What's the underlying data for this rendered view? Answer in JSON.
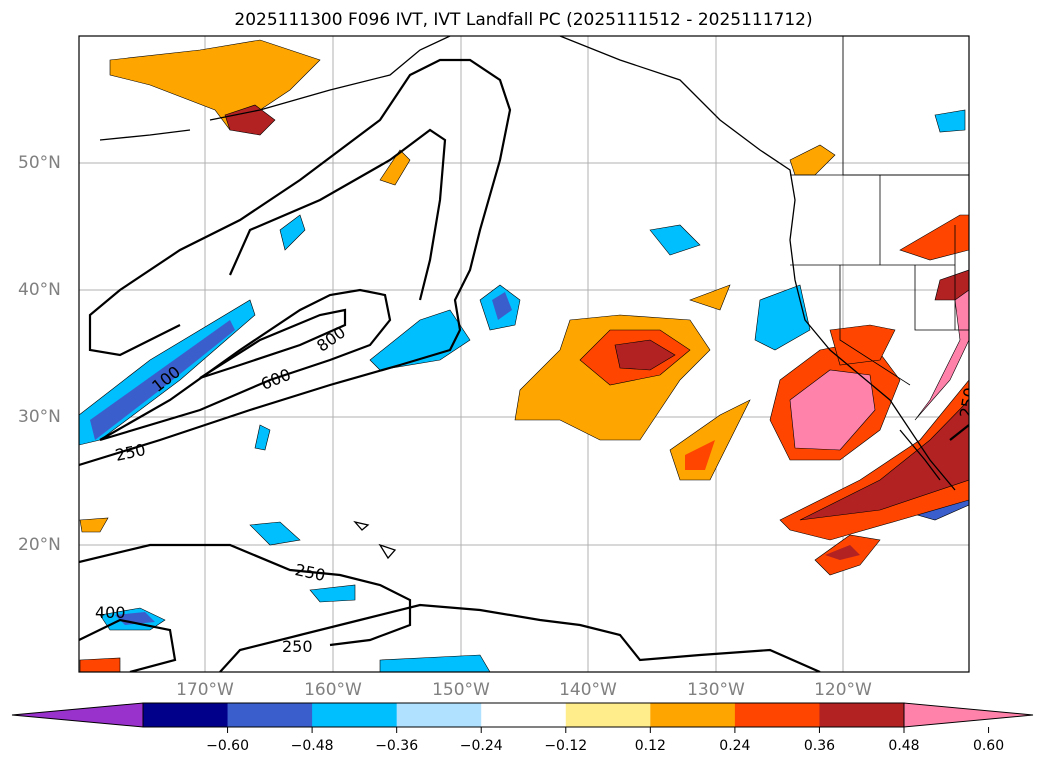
{
  "title": "2025111300 F096 IVT, IVT Landfall PC (2025111512 - 2025111712)",
  "lat_labels": [
    "50°N",
    "40°N",
    "30°N",
    "20°N"
  ],
  "lon_labels": [
    "170°W",
    "160°W",
    "150°W",
    "140°W",
    "130°W",
    "120°W"
  ],
  "contour_labels": [
    "100",
    "250",
    "400",
    "600",
    "800",
    "250",
    "250",
    "250"
  ],
  "colorbar": {
    "ticks": [
      "−0.60",
      "−0.48",
      "−0.36",
      "−0.24",
      "−0.12",
      "0.12",
      "0.24",
      "0.36",
      "0.48",
      "0.60"
    ],
    "colors": [
      "#9932cc",
      "#00008b",
      "#3a5fcd",
      "#00bfff",
      "#b0e2ff",
      "#ffffff",
      "#ffec8b",
      "#ffa500",
      "#ff4500",
      "#b22222",
      "#ff82ab"
    ]
  }
}
